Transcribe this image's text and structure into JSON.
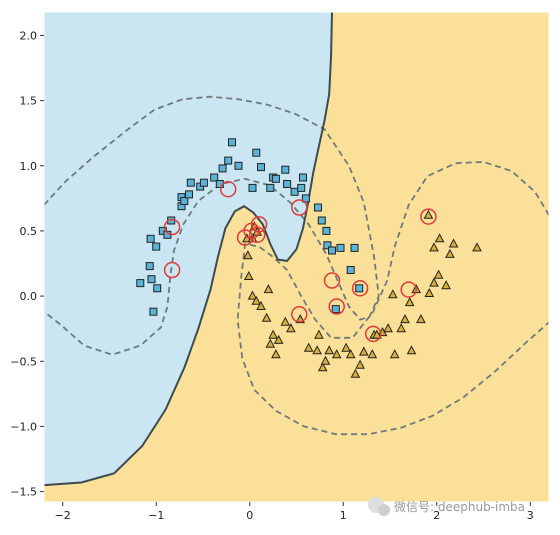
{
  "chart_data": {
    "type": "scatter",
    "subtype": "SVM decision boundary (two moons)",
    "title": "",
    "xlabel": "",
    "ylabel": "",
    "xlim": [
      -2.2,
      3.2
    ],
    "ylim": [
      -1.58,
      2.18
    ],
    "xticks": [
      -2,
      -1,
      0,
      1,
      2,
      3
    ],
    "yticks": [
      -1.5,
      -1.0,
      -0.5,
      0.0,
      0.5,
      1.0,
      1.5,
      2.0
    ],
    "xtick_labels": [
      "−2",
      "−1",
      "0",
      "1",
      "2",
      "3"
    ],
    "ytick_labels": [
      "−1.5",
      "−1.0",
      "−0.5",
      "0.0",
      "0.5",
      "1.0",
      "1.5",
      "2.0"
    ],
    "grid": false,
    "legend": "none",
    "colors": {
      "region_class_0": "#c9e6f2",
      "region_class_1": "#fbe09a",
      "marker_class_0": "#5bb3d8",
      "marker_class_1": "#d6b03a",
      "marker_edge": "#222222",
      "support_vector_ring": "#e03a3a",
      "boundary_line": "#3f4a4d",
      "margin_line": "#6f7a7d"
    },
    "series": [
      {
        "marker": "square",
        "color": "#5bb3d8",
        "points": [
          [
            -1.17,
            0.1
          ],
          [
            -1.05,
            0.13
          ],
          [
            -0.99,
            0.06
          ],
          [
            -1.03,
            -0.12
          ],
          [
            -1.07,
            0.23
          ],
          [
            -1.06,
            0.44
          ],
          [
            -1.0,
            0.38
          ],
          [
            -0.93,
            0.5
          ],
          [
            -0.88,
            0.47
          ],
          [
            -0.84,
            0.58
          ],
          [
            -0.73,
            0.69
          ],
          [
            -0.73,
            0.76
          ],
          [
            -0.7,
            0.73
          ],
          [
            -0.65,
            0.78
          ],
          [
            -0.63,
            0.87
          ],
          [
            -0.53,
            0.84
          ],
          [
            -0.49,
            0.87
          ],
          [
            -0.38,
            0.91
          ],
          [
            -0.32,
            0.86
          ],
          [
            -0.29,
            0.98
          ],
          [
            -0.23,
            1.04
          ],
          [
            -0.19,
            1.18
          ],
          [
            -0.12,
            1.0
          ],
          [
            0.03,
            0.83
          ],
          [
            0.07,
            1.1
          ],
          [
            0.12,
            0.99
          ],
          [
            0.22,
            0.83
          ],
          [
            0.25,
            0.91
          ],
          [
            0.28,
            0.9
          ],
          [
            0.38,
            0.97
          ],
          [
            0.4,
            0.86
          ],
          [
            0.48,
            0.8
          ],
          [
            0.55,
            0.83
          ],
          [
            0.57,
            0.91
          ],
          [
            0.6,
            0.75
          ],
          [
            0.73,
            0.68
          ],
          [
            0.77,
            0.58
          ],
          [
            0.82,
            0.5
          ],
          [
            0.83,
            0.39
          ],
          [
            0.88,
            0.35
          ],
          [
            0.92,
            -0.1
          ],
          [
            0.97,
            0.37
          ],
          [
            1.08,
            0.2
          ],
          [
            1.12,
            0.37
          ],
          [
            1.17,
            0.06
          ]
        ]
      },
      {
        "marker": "triangle",
        "color": "#d6b03a",
        "points": [
          [
            -0.03,
            0.44
          ],
          [
            0.03,
            0.44
          ],
          [
            0.05,
            0.53
          ],
          [
            0.08,
            0.49
          ],
          [
            -0.02,
            0.31
          ],
          [
            -0.01,
            0.15
          ],
          [
            0.03,
            0.0
          ],
          [
            0.07,
            -0.04
          ],
          [
            0.12,
            -0.08
          ],
          [
            0.18,
            -0.17
          ],
          [
            0.2,
            0.05
          ],
          [
            0.22,
            -0.37
          ],
          [
            0.25,
            -0.3
          ],
          [
            0.28,
            -0.45
          ],
          [
            0.31,
            -0.34
          ],
          [
            0.38,
            -0.2
          ],
          [
            0.44,
            -0.25
          ],
          [
            0.54,
            -0.18
          ],
          [
            0.63,
            -0.4
          ],
          [
            0.72,
            -0.42
          ],
          [
            0.74,
            -0.3
          ],
          [
            0.78,
            -0.55
          ],
          [
            0.81,
            -0.5
          ],
          [
            0.85,
            -0.42
          ],
          [
            0.93,
            -0.45
          ],
          [
            1.03,
            -0.4
          ],
          [
            1.08,
            -0.45
          ],
          [
            1.13,
            -0.6
          ],
          [
            1.18,
            -0.53
          ],
          [
            1.22,
            -0.43
          ],
          [
            1.31,
            -0.45
          ],
          [
            1.33,
            -0.3
          ],
          [
            1.42,
            -0.28
          ],
          [
            1.48,
            -0.25
          ],
          [
            1.55,
            -0.45
          ],
          [
            1.62,
            -0.25
          ],
          [
            1.66,
            -0.18
          ],
          [
            1.71,
            -0.05
          ],
          [
            1.73,
            -0.42
          ],
          [
            1.78,
            0.05
          ],
          [
            1.83,
            -0.18
          ],
          [
            1.92,
            0.02
          ],
          [
            1.97,
            0.1
          ],
          [
            2.02,
            0.16
          ],
          [
            2.1,
            0.08
          ],
          [
            2.14,
            0.32
          ],
          [
            2.18,
            0.4
          ],
          [
            2.03,
            0.44
          ],
          [
            1.97,
            0.37
          ],
          [
            2.43,
            0.37
          ],
          [
            1.91,
            0.62
          ],
          [
            1.53,
            0.01
          ],
          [
            1.36,
            -0.3
          ]
        ]
      }
    ],
    "support_vectors": [
      [
        -0.83,
        0.53
      ],
      [
        -0.83,
        0.2
      ],
      [
        -0.23,
        0.82
      ],
      [
        -0.05,
        0.45
      ],
      [
        0.02,
        0.5
      ],
      [
        0.08,
        0.47
      ],
      [
        0.1,
        0.55
      ],
      [
        0.53,
        0.68
      ],
      [
        0.88,
        0.12
      ],
      [
        0.93,
        -0.08
      ],
      [
        1.18,
        0.06
      ],
      [
        0.53,
        -0.14
      ],
      [
        1.32,
        -0.29
      ],
      [
        1.7,
        0.05
      ],
      [
        1.91,
        0.61
      ]
    ],
    "decision_boundary": [
      [
        0.88,
        2.18
      ],
      [
        0.87,
        1.85
      ],
      [
        0.85,
        1.55
      ],
      [
        0.8,
        1.35
      ],
      [
        0.74,
        1.15
      ],
      [
        0.68,
        0.95
      ],
      [
        0.62,
        0.7
      ],
      [
        0.57,
        0.52
      ],
      [
        0.5,
        0.36
      ],
      [
        0.4,
        0.27
      ],
      [
        0.3,
        0.28
      ],
      [
        0.22,
        0.4
      ],
      [
        0.14,
        0.55
      ],
      [
        0.04,
        0.64
      ],
      [
        -0.06,
        0.69
      ],
      [
        -0.16,
        0.65
      ],
      [
        -0.26,
        0.52
      ],
      [
        -0.34,
        0.3
      ],
      [
        -0.42,
        0.05
      ],
      [
        -0.55,
        -0.25
      ],
      [
        -0.7,
        -0.55
      ],
      [
        -0.9,
        -0.87
      ],
      [
        -1.15,
        -1.15
      ],
      [
        -1.45,
        -1.36
      ],
      [
        -1.8,
        -1.43
      ],
      [
        -2.2,
        -1.45
      ]
    ],
    "margin_upper": [
      [
        -2.2,
        0.7
      ],
      [
        -1.97,
        0.88
      ],
      [
        -1.67,
        1.07
      ],
      [
        -1.32,
        1.27
      ],
      [
        -1.02,
        1.43
      ],
      [
        -0.72,
        1.51
      ],
      [
        -0.42,
        1.53
      ],
      [
        -0.12,
        1.51
      ],
      [
        0.18,
        1.47
      ],
      [
        0.48,
        1.4
      ],
      [
        0.8,
        1.28
      ],
      [
        1.06,
        1.0
      ],
      [
        1.22,
        0.72
      ],
      [
        1.33,
        0.3
      ],
      [
        1.38,
        0.0
      ],
      [
        1.28,
        -0.16
      ],
      [
        1.18,
        -0.18
      ],
      [
        1.06,
        -0.08
      ],
      [
        0.94,
        0.12
      ],
      [
        0.82,
        0.32
      ],
      [
        0.63,
        0.55
      ],
      [
        0.43,
        0.72
      ],
      [
        0.21,
        0.85
      ],
      [
        -0.05,
        0.9
      ],
      [
        -0.31,
        0.86
      ],
      [
        -0.55,
        0.73
      ],
      [
        -0.71,
        0.55
      ],
      [
        -0.81,
        0.35
      ],
      [
        -0.85,
        0.15
      ],
      [
        -0.88,
        -0.08
      ],
      [
        -0.95,
        -0.24
      ],
      [
        -1.17,
        -0.38
      ],
      [
        -1.47,
        -0.45
      ],
      [
        -1.77,
        -0.38
      ],
      [
        -2.02,
        -0.22
      ],
      [
        -2.2,
        -0.12
      ]
    ],
    "margin_lower": [
      [
        3.2,
        0.62
      ],
      [
        3.05,
        0.8
      ],
      [
        2.8,
        0.96
      ],
      [
        2.5,
        1.03
      ],
      [
        2.2,
        1.02
      ],
      [
        1.9,
        0.92
      ],
      [
        1.7,
        0.7
      ],
      [
        1.55,
        0.38
      ],
      [
        1.47,
        0.12
      ],
      [
        1.32,
        -0.12
      ],
      [
        1.1,
        -0.32
      ],
      [
        0.87,
        -0.32
      ],
      [
        0.7,
        -0.18
      ],
      [
        0.55,
        0.0
      ],
      [
        0.4,
        0.2
      ],
      [
        0.25,
        0.3
      ],
      [
        0.1,
        0.38
      ],
      [
        -0.05,
        0.4
      ],
      [
        -0.09,
        0.15
      ],
      [
        -0.13,
        -0.18
      ],
      [
        -0.08,
        -0.48
      ],
      [
        0.05,
        -0.72
      ],
      [
        0.28,
        -0.88
      ],
      [
        0.58,
        -1.0
      ],
      [
        0.92,
        -1.06
      ],
      [
        1.27,
        -1.06
      ],
      [
        1.62,
        -1.01
      ],
      [
        1.95,
        -0.92
      ],
      [
        2.28,
        -0.78
      ],
      [
        2.62,
        -0.58
      ],
      [
        2.95,
        -0.36
      ],
      [
        3.2,
        -0.2
      ]
    ]
  },
  "watermark": {
    "text": "微信号: deephub-imba"
  }
}
